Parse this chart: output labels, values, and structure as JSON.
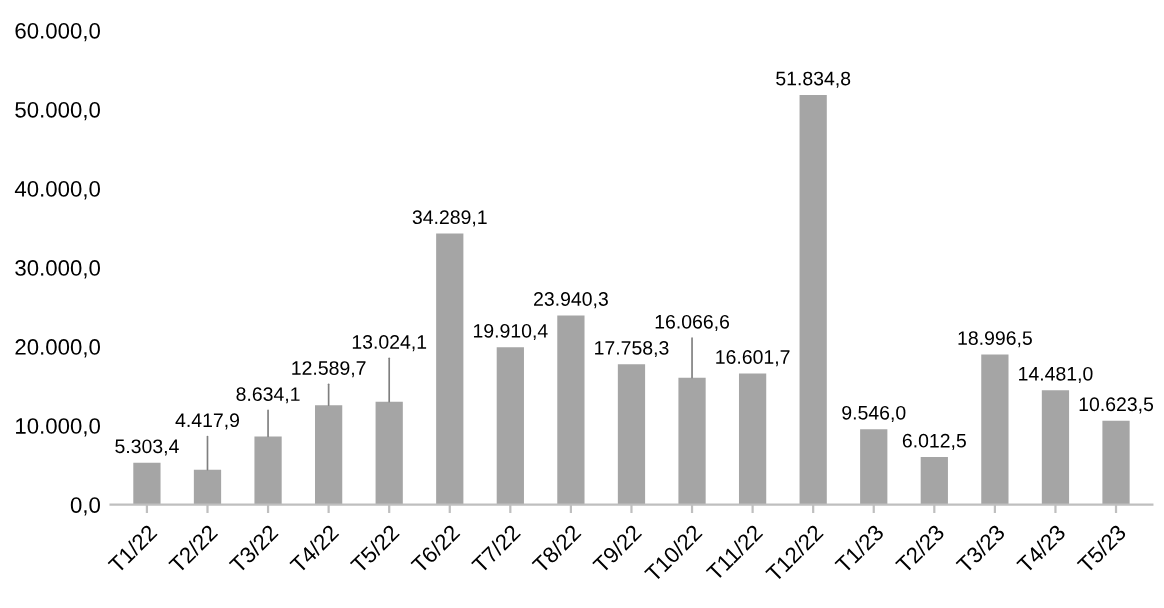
{
  "chart_data": {
    "type": "bar",
    "categories": [
      "T1/22",
      "T2/22",
      "T3/22",
      "T4/22",
      "T5/22",
      "T6/22",
      "T7/22",
      "T8/22",
      "T9/22",
      "T10/22",
      "T11/22",
      "T12/22",
      "T1/23",
      "T2/23",
      "T3/23",
      "T4/23",
      "T5/23"
    ],
    "values": [
      5303.4,
      4417.9,
      8634.1,
      12589.7,
      13024.1,
      34289.1,
      19910.4,
      23940.3,
      17758.3,
      16066.6,
      16601.7,
      51834.8,
      9546.0,
      6012.5,
      18996.5,
      14481.0,
      10623.5
    ],
    "value_labels": [
      "5.303,4",
      "4.417,9",
      "8.634,1",
      "12.589,7",
      "13.024,1",
      "34.289,1",
      "19.910,4",
      "23.940,3",
      "17.758,3",
      "16.066,6",
      "16.601,7",
      "51.834,8",
      "9.546,0",
      "6.012,5",
      "18.996,5",
      "14.481,0",
      "10.623,5"
    ],
    "color": "#a5a5a5",
    "ylim": [
      0,
      60000
    ],
    "yticks": [
      {
        "value": 0,
        "label": "0,0"
      },
      {
        "value": 10000,
        "label": "10.000,0"
      },
      {
        "value": 20000,
        "label": "20.000,0"
      },
      {
        "value": 30000,
        "label": "30.000,0"
      },
      {
        "value": 40000,
        "label": "40.000,0"
      },
      {
        "value": 50000,
        "label": "50.000,0"
      },
      {
        "value": 60000,
        "label": "60.000,0"
      }
    ],
    "grid": false
  }
}
